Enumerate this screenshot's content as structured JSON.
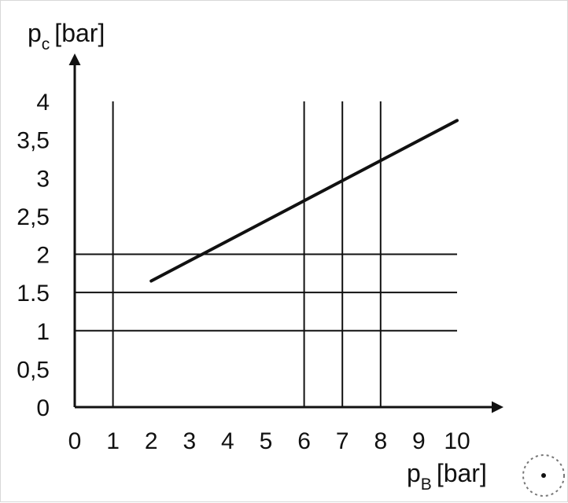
{
  "chart_data": {
    "type": "line",
    "title": "",
    "xlabel": {
      "symbol": "p",
      "subscript": "B",
      "unit": "[bar]"
    },
    "ylabel": {
      "symbol": "p",
      "subscript": "c",
      "unit": "[bar]"
    },
    "xlim": [
      0,
      10
    ],
    "ylim": [
      0,
      4
    ],
    "x_ticks": [
      0,
      1,
      2,
      3,
      4,
      5,
      6,
      7,
      8,
      9,
      10
    ],
    "x_tick_labels": [
      "0",
      "1",
      "2",
      "3",
      "4",
      "5",
      "6",
      "7",
      "8",
      "9",
      "10"
    ],
    "y_ticks": [
      0,
      0.5,
      1,
      1.5,
      2,
      2.5,
      3,
      3.5,
      4
    ],
    "y_tick_labels": [
      "0",
      "0,5",
      "1",
      "1.5",
      "2",
      "2,5",
      "3",
      "3,5",
      "4"
    ],
    "grid": "partial",
    "reference_lines": {
      "vertical": [
        1,
        6,
        7,
        8
      ],
      "horizontal": [
        1,
        1.5,
        2
      ]
    },
    "series": [
      {
        "x": [
          2,
          10
        ],
        "y": [
          1.65,
          3.75
        ]
      }
    ]
  }
}
